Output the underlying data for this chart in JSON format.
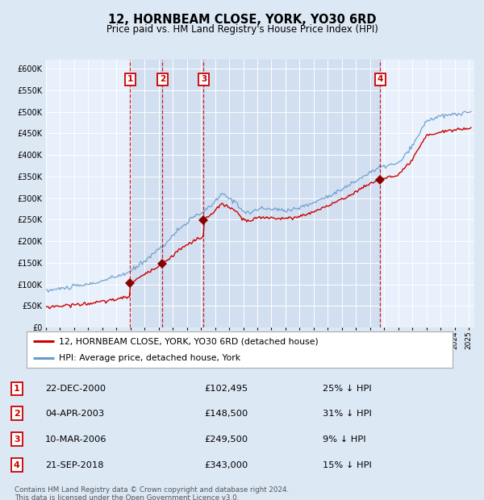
{
  "title": "12, HORNBEAM CLOSE, YORK, YO30 6RD",
  "subtitle": "Price paid vs. HM Land Registry's House Price Index (HPI)",
  "footer": "Contains HM Land Registry data © Crown copyright and database right 2024.\nThis data is licensed under the Open Government Licence v3.0.",
  "legend_line1": "12, HORNBEAM CLOSE, YORK, YO30 6RD (detached house)",
  "legend_line2": "HPI: Average price, detached house, York",
  "sales": [
    {
      "num": 1,
      "date": "22-DEC-2000",
      "price": 102495,
      "pct": "25% ↓ HPI",
      "year": 2000.97
    },
    {
      "num": 2,
      "date": "04-APR-2003",
      "price": 148500,
      "pct": "31% ↓ HPI",
      "year": 2003.26
    },
    {
      "num": 3,
      "date": "10-MAR-2006",
      "price": 249500,
      "pct": "9% ↓ HPI",
      "year": 2006.19
    },
    {
      "num": 4,
      "date": "21-SEP-2018",
      "price": 343000,
      "pct": "15% ↓ HPI",
      "year": 2018.72
    }
  ],
  "ylim": [
    0,
    620000
  ],
  "yticks": [
    0,
    50000,
    100000,
    150000,
    200000,
    250000,
    300000,
    350000,
    400000,
    450000,
    500000,
    550000,
    600000
  ],
  "bg_color": "#dde8f5",
  "plot_bg": "#e8f0fb",
  "grid_color": "#ffffff",
  "hpi_color": "#6699cc",
  "price_color": "#cc0000",
  "marker_color": "#880000",
  "vline_color": "#cc0000",
  "box_color": "#cc0000",
  "shade_color": "#c8d8ee",
  "hpi_anchors_x": [
    1995.0,
    1996.0,
    1997.0,
    1998.0,
    1999.0,
    2000.0,
    2001.0,
    2002.0,
    2003.5,
    2004.5,
    2005.5,
    2006.5,
    2007.5,
    2008.5,
    2009.0,
    2009.5,
    2010.0,
    2011.0,
    2012.0,
    2013.0,
    2014.0,
    2015.0,
    2016.0,
    2017.0,
    2018.0,
    2019.0,
    2020.0,
    2021.0,
    2022.0,
    2023.0,
    2024.0,
    2025.2
  ],
  "hpi_anchors_y": [
    85000,
    90000,
    95000,
    100000,
    108000,
    118000,
    130000,
    155000,
    195000,
    230000,
    255000,
    275000,
    310000,
    290000,
    270000,
    265000,
    275000,
    275000,
    272000,
    278000,
    290000,
    305000,
    320000,
    340000,
    360000,
    375000,
    380000,
    420000,
    480000,
    490000,
    495000,
    500000
  ]
}
